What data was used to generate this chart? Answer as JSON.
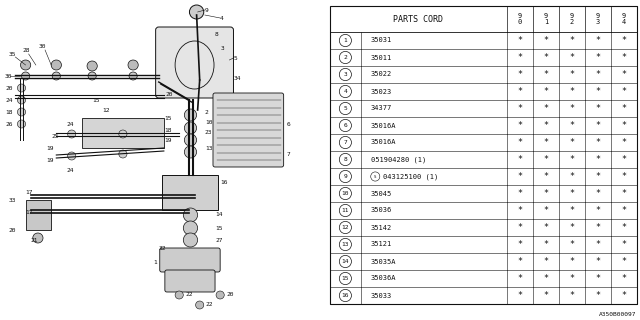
{
  "table_header": "PARTS CORD",
  "col_headers": [
    "9\n0",
    "9\n1",
    "9\n2",
    "9\n3",
    "9\n4"
  ],
  "rows": [
    {
      "num": "1",
      "part": "35031",
      "vals": [
        "*",
        "*",
        "*",
        "*",
        "*"
      ]
    },
    {
      "num": "2",
      "part": "35011",
      "vals": [
        "*",
        "*",
        "*",
        "*",
        "*"
      ]
    },
    {
      "num": "3",
      "part": "35022",
      "vals": [
        "*",
        "*",
        "*",
        "*",
        "*"
      ]
    },
    {
      "num": "4",
      "part": "35023",
      "vals": [
        "*",
        "*",
        "*",
        "*",
        "*"
      ]
    },
    {
      "num": "5",
      "part": "34377",
      "vals": [
        "*",
        "*",
        "*",
        "*",
        "*"
      ]
    },
    {
      "num": "6",
      "part": "35016A",
      "vals": [
        "*",
        "*",
        "*",
        "*",
        "*"
      ]
    },
    {
      "num": "7",
      "part": "35016A",
      "vals": [
        "*",
        "*",
        "*",
        "*",
        "*"
      ]
    },
    {
      "num": "8",
      "part": "051904280 (1)",
      "vals": [
        "*",
        "*",
        "*",
        "*",
        "*"
      ]
    },
    {
      "num": "9",
      "part": "043125100 (1)",
      "vals": [
        "*",
        "*",
        "*",
        "*",
        "*"
      ],
      "special": true
    },
    {
      "num": "10",
      "part": "35045",
      "vals": [
        "*",
        "*",
        "*",
        "*",
        "*"
      ]
    },
    {
      "num": "11",
      "part": "35036",
      "vals": [
        "*",
        "*",
        "*",
        "*",
        "*"
      ]
    },
    {
      "num": "12",
      "part": "35142",
      "vals": [
        "*",
        "*",
        "*",
        "*",
        "*"
      ]
    },
    {
      "num": "13",
      "part": "35121",
      "vals": [
        "*",
        "*",
        "*",
        "*",
        "*"
      ]
    },
    {
      "num": "14",
      "part": "35035A",
      "vals": [
        "*",
        "*",
        "*",
        "*",
        "*"
      ]
    },
    {
      "num": "15",
      "part": "35036A",
      "vals": [
        "*",
        "*",
        "*",
        "*",
        "*"
      ]
    },
    {
      "num": "16",
      "part": "35033",
      "vals": [
        "*",
        "*",
        "*",
        "*",
        "*"
      ]
    }
  ],
  "bg_color": "#ffffff",
  "watermark": "A350B00097"
}
